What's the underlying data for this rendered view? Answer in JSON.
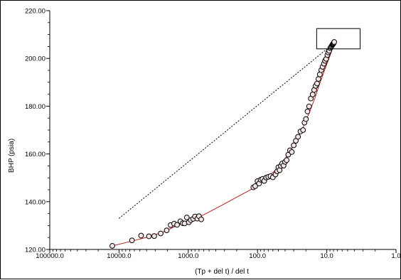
{
  "chart_data": {
    "type": "scatter",
    "xlabel": "(Tp + del t)  / del t",
    "ylabel": "BHP (psia)",
    "x_scale": "log",
    "x_reversed": true,
    "xlim": [
      100000.0,
      1.0
    ],
    "ylim": [
      120.0,
      220.0
    ],
    "x_ticks": [
      100000.0,
      10000.0,
      1000.0,
      100.0,
      10.0,
      1.0
    ],
    "x_tick_labels": [
      "100000.0",
      "10000.0",
      "1000.0",
      "100.0",
      "10.0",
      "1.0"
    ],
    "y_ticks": [
      120,
      140,
      160,
      180,
      200,
      220
    ],
    "y_tick_labels": [
      "120.00",
      "140.00",
      "160.00",
      "180.00",
      "200.00",
      "220.00"
    ],
    "grid": false,
    "legend": "none",
    "colors": {
      "fit_line": "#b22222",
      "markers": "#000000",
      "marker_fill": "#f5e6e6",
      "straight_line": "#000000",
      "box": "#000000"
    },
    "series": [
      {
        "style": "markers",
        "x": [
          12500,
          6500,
          4800,
          3700,
          3100,
          2500,
          2050,
          1800,
          1600,
          1450,
          1300,
          1200,
          1130,
          1050,
          980,
          920,
          850,
          800,
          740,
          700,
          650,
          115,
          108,
          100,
          95,
          90,
          85,
          80,
          75,
          70,
          65,
          60,
          55,
          52,
          50,
          48,
          46,
          44,
          42,
          40,
          38,
          36,
          34,
          32,
          30,
          28,
          26,
          24,
          22,
          21,
          20,
          19,
          18,
          17,
          16,
          15.2,
          14.5,
          13.8,
          13.2,
          12.6,
          12.0,
          11.5,
          11.0,
          10.6,
          10.2,
          9.8,
          9.5,
          9.2,
          8.9,
          8.7,
          8.5,
          8.3,
          8.2,
          8.1,
          8.0,
          7.9,
          7.8
        ],
        "y": [
          121.5,
          123.8,
          125.8,
          125.5,
          125.6,
          126.7,
          128.0,
          130.2,
          130.8,
          130.3,
          131.8,
          131.0,
          130.9,
          133.4,
          131.4,
          132.3,
          132.8,
          133.8,
          132.9,
          133.9,
          132.6,
          146.0,
          146.5,
          148.6,
          147.6,
          149.2,
          149.5,
          148.7,
          150.1,
          150.4,
          150.7,
          150.2,
          151.4,
          152.7,
          154.4,
          153.2,
          155.0,
          156.0,
          155.1,
          156.7,
          157.4,
          159.7,
          161.5,
          160.8,
          163.6,
          165.5,
          167.2,
          169.4,
          170.0,
          173.1,
          174.6,
          177.8,
          179.9,
          183.2,
          184.9,
          186.8,
          188.5,
          189.5,
          191.4,
          193.3,
          195.1,
          196.5,
          197.8,
          199.0,
          199.8,
          201.4,
          202.5,
          203.2,
          204.3,
          204.8,
          205.2,
          205.6,
          205.9,
          206.1,
          206.3,
          206.6,
          206.9
        ]
      },
      {
        "style": "line",
        "x": [
          12500,
          6500,
          3800,
          2300,
          1500,
          1000,
          700,
          450,
          300,
          200,
          140,
          115,
          100,
          80,
          60,
          45,
          35,
          28,
          22,
          18,
          15,
          12.5,
          10.5,
          9.2,
          8.4,
          8.0,
          7.8
        ],
        "y": [
          121.5,
          123.5,
          125.2,
          127.3,
          129.8,
          131.9,
          133.5,
          136.4,
          139.1,
          141.9,
          144.3,
          145.7,
          147.3,
          149.7,
          152.2,
          155.9,
          160.3,
          165.4,
          171.0,
          177.0,
          183.0,
          189.9,
          195.9,
          200.3,
          203.7,
          205.4,
          206.3
        ]
      },
      {
        "style": "dashed",
        "x": [
          10000,
          9
        ],
        "y": [
          133.0,
          205.0
        ]
      }
    ],
    "annotation_box": {
      "x": [
        14.0,
        3.3
      ],
      "y": [
        204.0,
        212.5
      ]
    }
  }
}
